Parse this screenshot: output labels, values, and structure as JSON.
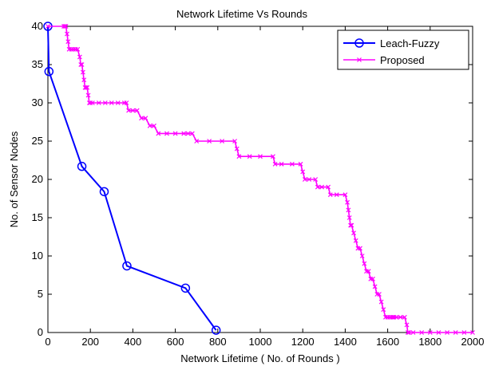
{
  "chart_data": {
    "type": "line",
    "title": "Network Lifetime Vs Rounds",
    "xlabel": "Network Lifetime ( No. of Rounds )",
    "ylabel": "No. of Sensor Nodes",
    "xlim": [
      0,
      2000
    ],
    "ylim": [
      0,
      40
    ],
    "xticks": [
      0,
      200,
      400,
      600,
      800,
      1000,
      1200,
      1400,
      1600,
      1800,
      2000
    ],
    "yticks": [
      0,
      5,
      10,
      15,
      20,
      25,
      30,
      35,
      40
    ],
    "grid": false,
    "legend_position": "top-right",
    "series": [
      {
        "name": "Leach-Fuzzy",
        "color": "#0000ff",
        "marker": "circle",
        "x": [
          0,
          5,
          160,
          265,
          372,
          648,
          792
        ],
        "y": [
          40,
          34.1,
          21.7,
          18.4,
          8.7,
          5.8,
          0.3
        ]
      },
      {
        "name": "Proposed",
        "color": "#ff00ff",
        "marker": "x",
        "x": [
          0,
          75,
          80,
          85,
          90,
          95,
          100,
          110,
          120,
          130,
          140,
          150,
          155,
          160,
          165,
          170,
          175,
          180,
          185,
          190,
          195,
          200,
          210,
          240,
          270,
          300,
          330,
          360,
          370,
          380,
          400,
          420,
          440,
          460,
          480,
          500,
          520,
          560,
          600,
          640,
          660,
          680,
          700,
          760,
          820,
          880,
          890,
          900,
          950,
          1000,
          1060,
          1070,
          1100,
          1150,
          1190,
          1200,
          1210,
          1230,
          1260,
          1270,
          1290,
          1320,
          1330,
          1360,
          1400,
          1410,
          1415,
          1420,
          1425,
          1430,
          1440,
          1450,
          1460,
          1470,
          1480,
          1490,
          1500,
          1510,
          1520,
          1530,
          1540,
          1550,
          1560,
          1570,
          1580,
          1590,
          1600,
          1610,
          1620,
          1625,
          1630,
          1640,
          1660,
          1680,
          1690,
          1695,
          1700,
          1720,
          1760,
          1800,
          1840,
          1880,
          1920,
          1960,
          2000
        ],
        "y": [
          40,
          40,
          40,
          40,
          39,
          38,
          37,
          37,
          37,
          37,
          37,
          36,
          35,
          35,
          34,
          33,
          32,
          32,
          32,
          31,
          30,
          30,
          30,
          30,
          30,
          30,
          30,
          30,
          30,
          29,
          29,
          29,
          28,
          28,
          27,
          27,
          26,
          26,
          26,
          26,
          26,
          26,
          25,
          25,
          25,
          25,
          24,
          23,
          23,
          23,
          23,
          22,
          22,
          22,
          22,
          21,
          20,
          20,
          20,
          19,
          19,
          19,
          18,
          18,
          18,
          17,
          16,
          15,
          14,
          14,
          13,
          12,
          11,
          11,
          10,
          9,
          8,
          8,
          7,
          7,
          6,
          5,
          5,
          4,
          3,
          2,
          2,
          2,
          2,
          2,
          2,
          2,
          2,
          2,
          1,
          0,
          0,
          0,
          0,
          0,
          0,
          0,
          0,
          0,
          0
        ]
      }
    ]
  }
}
